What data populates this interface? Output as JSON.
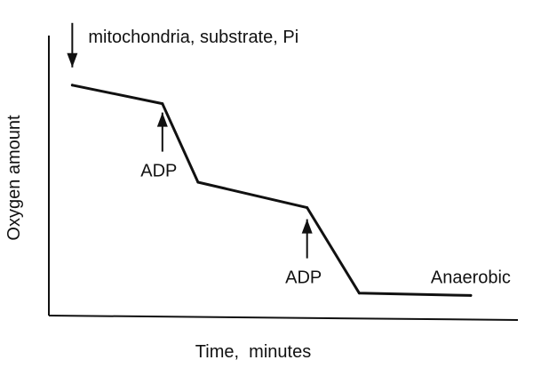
{
  "chart_data": {
    "type": "line",
    "title": "",
    "xlabel": "Time,  minutes",
    "ylabel": "Oxygen amount",
    "grid": false,
    "series": [
      {
        "points": [
          [
            0.8,
            9.7
          ],
          [
            4.6,
            8.9
          ],
          [
            6.1,
            5.5
          ],
          [
            10.7,
            4.4
          ],
          [
            12.9,
            0.7
          ],
          [
            17.6,
            0.6
          ]
        ]
      }
    ],
    "annotations": [
      {
        "text": "mitochondria,  substrate,  Pi",
        "x": 0.8,
        "y": 9.7,
        "arrow": "down"
      },
      {
        "text": "ADP",
        "x": 4.6,
        "y": 8.9,
        "arrow": "up"
      },
      {
        "text": "ADP",
        "x": 10.7,
        "y": 4.4,
        "arrow": "up"
      },
      {
        "text": "Anaerobic",
        "x": 17.6,
        "y": 0.6,
        "arrow": "none"
      }
    ]
  },
  "colors": {
    "line": "#111111",
    "background": "#ffffff"
  }
}
